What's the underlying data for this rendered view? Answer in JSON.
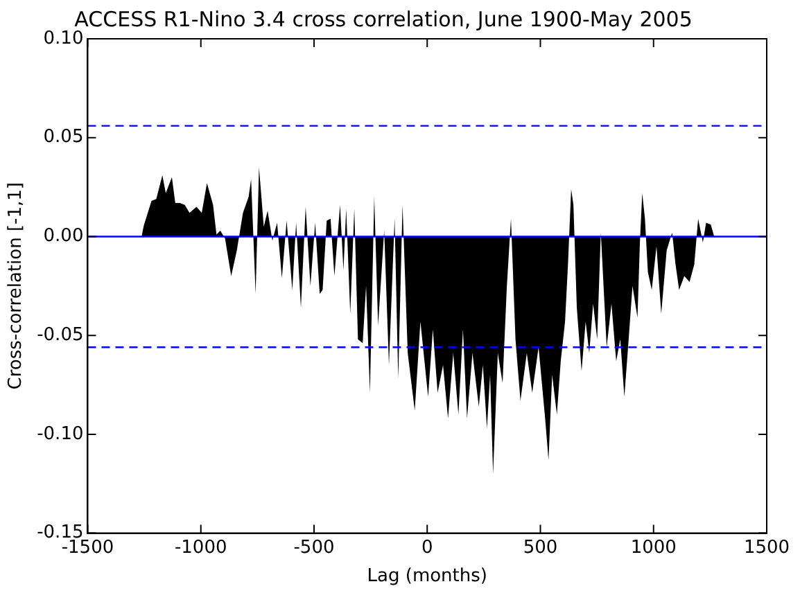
{
  "chart_data": {
    "type": "area",
    "title": "ACCESS R1-Nino 3.4 cross correlation, June 1900-May 2005",
    "xlabel": "Lag (months)",
    "ylabel": "Cross-correlation [-1,1]",
    "x": [
      -1262,
      -1252,
      -1218,
      -1197,
      -1170,
      -1155,
      -1128,
      -1113,
      -1092,
      -1071,
      -1050,
      -1019,
      -996,
      -973,
      -946,
      -931,
      -914,
      -893,
      -866,
      -841,
      -814,
      -789,
      -778,
      -758,
      -743,
      -722,
      -705,
      -684,
      -663,
      -642,
      -621,
      -596,
      -579,
      -558,
      -537,
      -516,
      -495,
      -475,
      -462,
      -444,
      -427,
      -410,
      -385,
      -370,
      -358,
      -340,
      -322,
      -306,
      -285,
      -270,
      -253,
      -234,
      -217,
      -190,
      -169,
      -144,
      -128,
      -109,
      -86,
      -55,
      -30,
      4,
      25,
      46,
      70,
      92,
      115,
      138,
      158,
      176,
      200,
      228,
      246,
      264,
      278,
      291,
      312,
      333,
      352,
      370,
      390,
      412,
      440,
      464,
      492,
      521,
      536,
      552,
      573,
      590,
      609,
      622,
      636,
      646,
      661,
      682,
      700,
      716,
      733,
      751,
      767,
      793,
      814,
      835,
      853,
      871,
      890,
      907,
      929,
      940,
      950,
      962,
      975,
      992,
      1013,
      1034,
      1058,
      1082,
      1097,
      1113,
      1136,
      1159,
      1180,
      1197,
      1218,
      1232,
      1253,
      1268
    ],
    "series": [
      {
        "color": "#000000",
        "values": [
          0,
          0.0056,
          0.018,
          0.019,
          0.031,
          0.022,
          0.03,
          0.017,
          0.017,
          0.016,
          0.012,
          0.015,
          0.012,
          0.027,
          0.016,
          0.001,
          0.003,
          -0.001,
          -0.02,
          -0.007,
          0.012,
          0.02,
          0.029,
          -0.029,
          0.035,
          0.005,
          0.013,
          -0.002,
          0.007,
          -0.021,
          0.008,
          -0.027,
          0.007,
          -0.036,
          0.015,
          -0.025,
          0.007,
          -0.029,
          -0.027,
          0.008,
          0.009,
          -0.02,
          0.016,
          -0.017,
          0.014,
          -0.039,
          0.014,
          -0.052,
          -0.054,
          -0.025,
          -0.079,
          0.02,
          -0.045,
          0.003,
          -0.065,
          0.009,
          -0.072,
          0.016,
          -0.059,
          -0.088,
          -0.043,
          -0.081,
          -0.047,
          -0.079,
          -0.065,
          -0.092,
          -0.059,
          -0.09,
          -0.047,
          -0.092,
          -0.059,
          -0.086,
          -0.065,
          -0.097,
          -0.07,
          -0.12,
          -0.059,
          -0.074,
          -0.025,
          0.009,
          -0.052,
          -0.083,
          -0.059,
          -0.079,
          -0.056,
          -0.092,
          -0.113,
          -0.07,
          -0.09,
          -0.063,
          -0.043,
          -0.014,
          0.024,
          0.016,
          -0.036,
          -0.068,
          -0.043,
          -0.059,
          -0.034,
          -0.052,
          0.002,
          -0.056,
          -0.034,
          -0.063,
          -0.052,
          -0.081,
          -0.052,
          -0.025,
          -0.041,
          -0.002,
          0.022,
          0.009,
          -0.018,
          -0.027,
          -0.005,
          -0.039,
          -0.007,
          0.002,
          -0.014,
          -0.027,
          -0.02,
          -0.023,
          -0.014,
          0.009,
          -0.003,
          0.007,
          0.006,
          0
        ]
      }
    ],
    "xlim": [
      -1500,
      1500
    ],
    "xticks": [
      -1500,
      -1000,
      -500,
      0,
      500,
      1000,
      1500
    ],
    "ylim": [
      -0.15,
      0.1
    ],
    "yticks": [
      {
        "value": -0.15,
        "label": "-0.15"
      },
      {
        "value": -0.1,
        "label": "-0.10"
      },
      {
        "value": -0.05,
        "label": "-0.05"
      },
      {
        "value": 0,
        "label": "0.00"
      },
      {
        "value": 0.05,
        "label": "0.05"
      },
      {
        "value": 0.1,
        "label": "0.10"
      }
    ],
    "ref_lines": [
      {
        "axis": "y",
        "value": 0.056,
        "color": "#0000ff",
        "line_style": "dashed"
      },
      {
        "axis": "y",
        "value": -0.056,
        "color": "#0000ff",
        "line_style": "dashed"
      },
      {
        "axis": "y",
        "value": 0,
        "color": "#0000ff",
        "line_style": "solid"
      }
    ],
    "grid": false,
    "legend": false,
    "marker": "none"
  }
}
